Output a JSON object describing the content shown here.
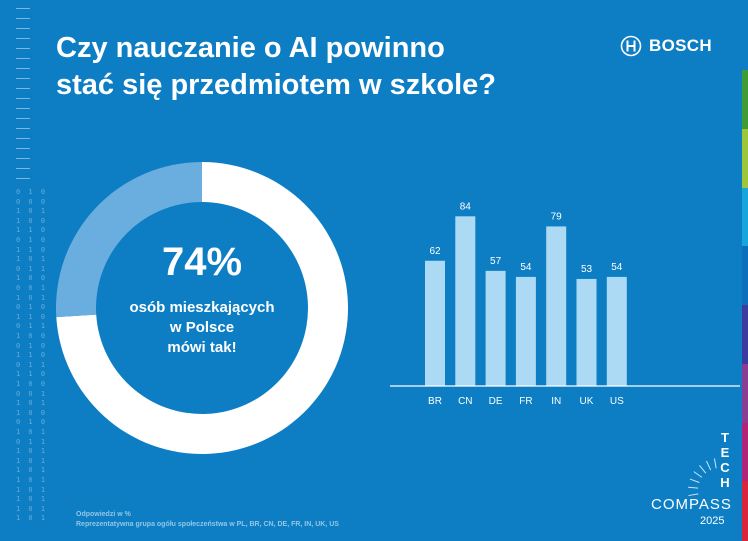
{
  "header": {
    "title_line1": "Czy nauczanie o AI powinno",
    "title_line2": "stać się przedmiotem w szkole?",
    "brand": "BOSCH",
    "brand_icon": "bosch-armature-icon"
  },
  "donut": {
    "value": 74,
    "percent_label": "74%",
    "caption_line1": "osób mieszkających",
    "caption_line2": "w Polsce",
    "caption_line3": "mówi tak!"
  },
  "footnote": {
    "line1": "Odpowiedzi w %",
    "line2": "Reprezentatywna grupa ogółu społeczeństwa w PL, BR, CN, DE, FR, IN, UK, US"
  },
  "branding": {
    "tech_letters": [
      "T",
      "E",
      "C",
      "H"
    ],
    "compass": "COMPASS",
    "year": "2025"
  },
  "colors": {
    "background": "#0d7ec4",
    "donut_main": "#ffffff",
    "donut_rest": "#6aaee0",
    "bar": "#acd9f4",
    "accent_band": [
      "#3f9c35",
      "#9dc73a",
      "#16a5dc",
      "#0b6fbd",
      "#3c3c9e",
      "#8b3d93",
      "#b1247a",
      "#d8263a"
    ]
  },
  "chart_data": [
    {
      "type": "pie",
      "values": [
        74,
        26
      ]
    },
    {
      "type": "bar",
      "categories": [
        "BR",
        "CN",
        "DE",
        "FR",
        "IN",
        "UK",
        "US"
      ],
      "values": [
        62,
        84,
        57,
        54,
        79,
        53,
        54
      ],
      "ylim": [
        0,
        100
      ]
    }
  ]
}
